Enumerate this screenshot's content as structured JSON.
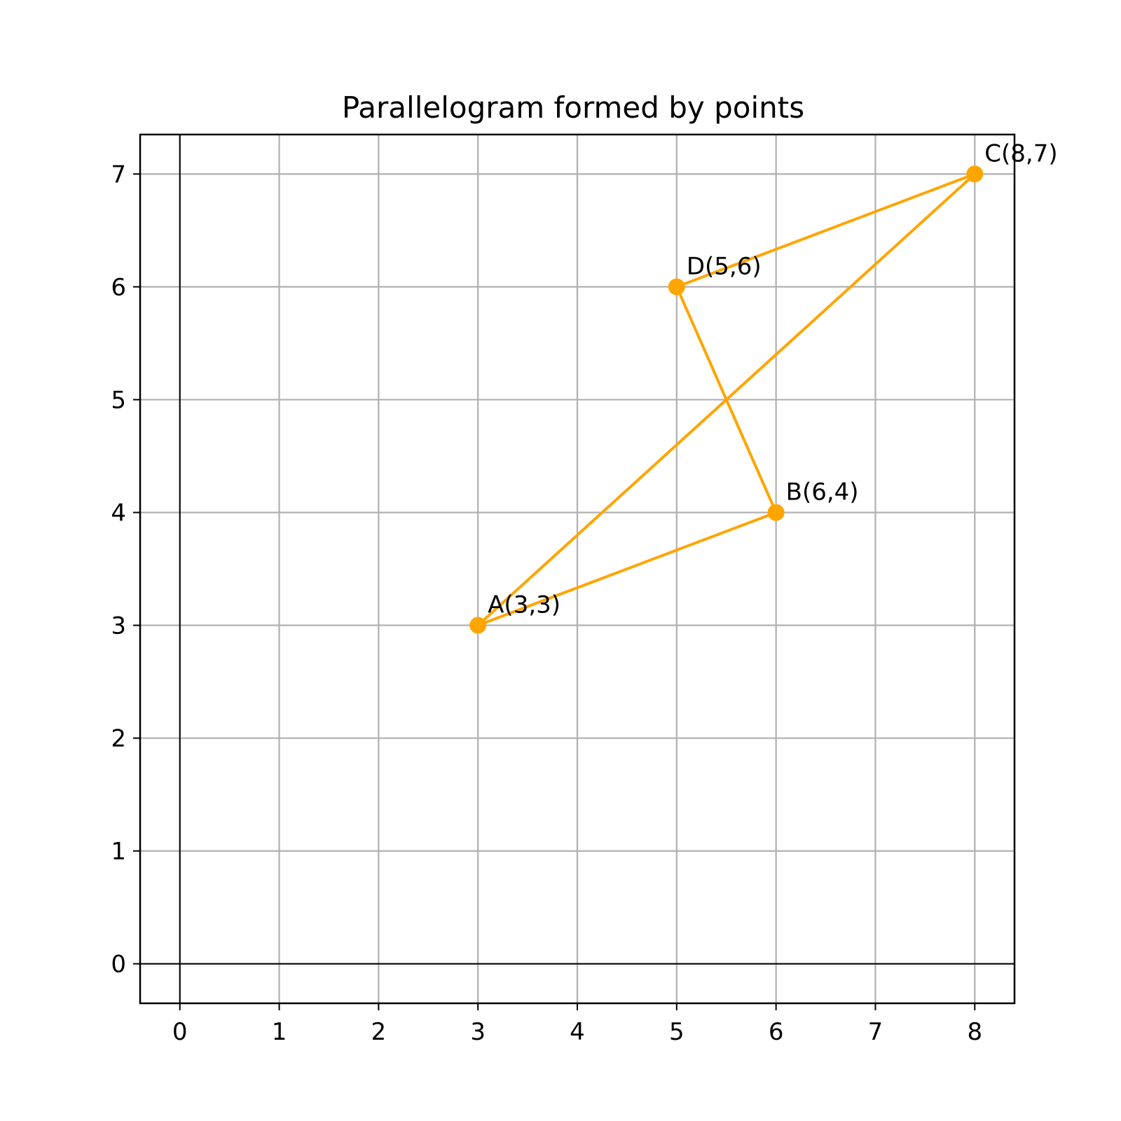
{
  "chart_data": {
    "type": "line",
    "title": "Parallelogram formed by points",
    "xlabel": "",
    "ylabel": "",
    "xlim": [
      -0.4,
      8.4
    ],
    "ylim": [
      -0.35,
      7.35
    ],
    "x_ticks": [
      0,
      1,
      2,
      3,
      4,
      5,
      6,
      7,
      8
    ],
    "y_ticks": [
      0,
      1,
      2,
      3,
      4,
      5,
      6,
      7
    ],
    "x_tick_labels": [
      "0",
      "1",
      "2",
      "3",
      "4",
      "5",
      "6",
      "7",
      "8"
    ],
    "y_tick_labels": [
      "0",
      "1",
      "2",
      "3",
      "4",
      "5",
      "6",
      "7"
    ],
    "grid": true,
    "zero_lines": true,
    "color": "#ffa500",
    "points": [
      {
        "label": "A(3,3)",
        "x": 3,
        "y": 3
      },
      {
        "label": "B(6,4)",
        "x": 6,
        "y": 4
      },
      {
        "label": "C(8,7)",
        "x": 8,
        "y": 7
      },
      {
        "label": "D(5,6)",
        "x": 5,
        "y": 6
      }
    ],
    "path_order": [
      "A(3,3)",
      "B(6,4)",
      "D(5,6)",
      "C(8,7)",
      "A(3,3)"
    ]
  }
}
